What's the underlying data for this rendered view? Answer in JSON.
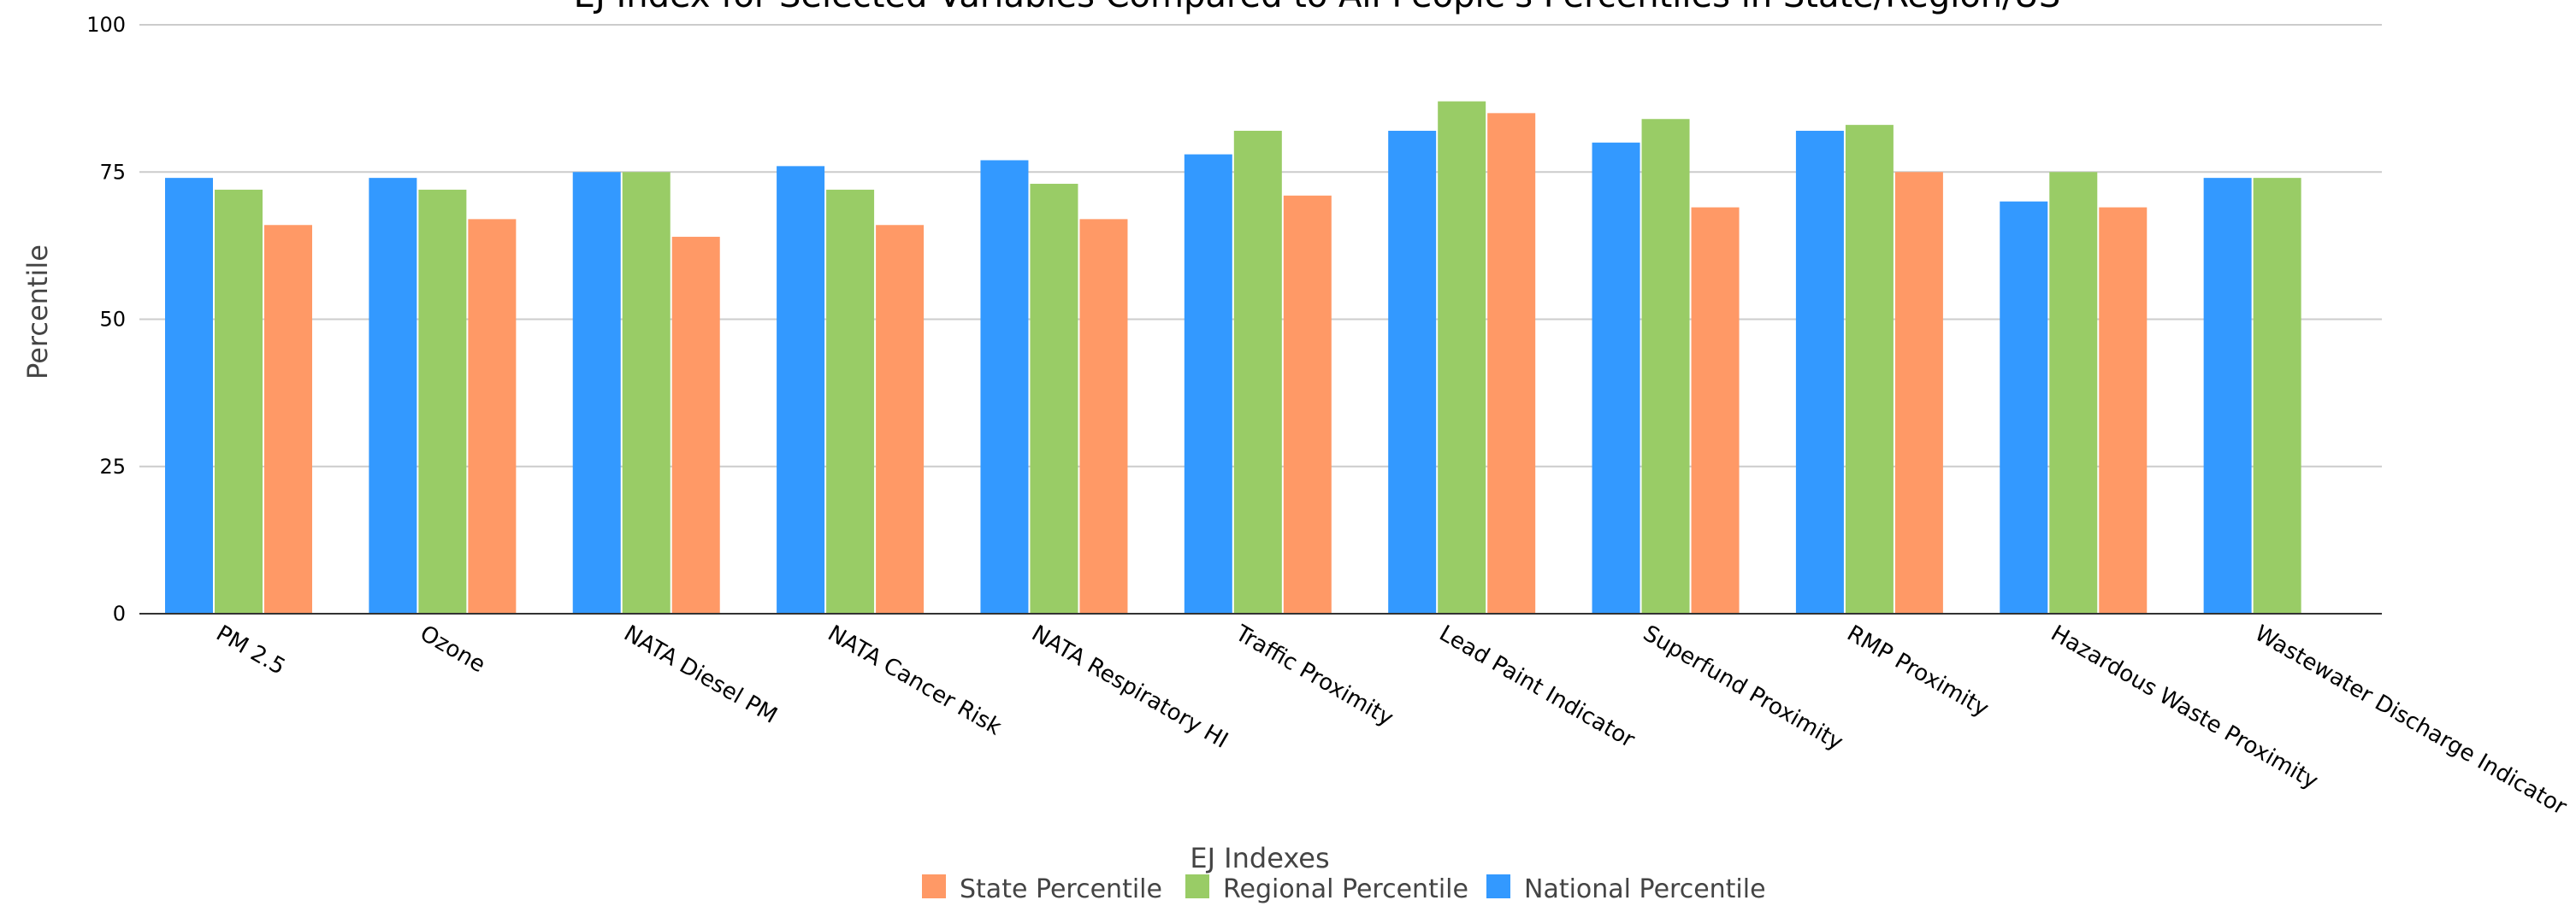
{
  "chart_data": {
    "type": "bar",
    "title": "EJ Index for Selected Variables Compared to All People's Percentiles in State/Region/US",
    "xlabel": "EJ Indexes",
    "ylabel": "Percentile",
    "ylim": [
      0,
      100
    ],
    "yticks": [
      0,
      25,
      50,
      75,
      100
    ],
    "grid": true,
    "legend_position": "bottom",
    "categories": [
      "PM 2.5",
      "Ozone",
      "NATA Diesel PM",
      "NATA Cancer Risk",
      "NATA Respiratory HI",
      "Traffic Proximity",
      "Lead Paint Indicator",
      "Superfund Proximity",
      "RMP Proximity",
      "Hazardous Waste Proximity",
      "Wastewater Discharge Indicator"
    ],
    "series": [
      {
        "name": "National Percentile",
        "color": "#3399ff",
        "values": [
          74,
          74,
          75,
          76,
          77,
          78,
          82,
          80,
          82,
          70,
          74
        ]
      },
      {
        "name": "Regional Percentile",
        "color": "#99cc66",
        "values": [
          72,
          72,
          75,
          72,
          73,
          82,
          87,
          84,
          83,
          75,
          74
        ]
      },
      {
        "name": "State Percentile",
        "color": "#ff9966",
        "values": [
          66,
          67,
          64,
          66,
          67,
          71,
          85,
          69,
          75,
          69,
          null
        ]
      }
    ],
    "legend_order": [
      "State Percentile",
      "Regional Percentile",
      "National Percentile"
    ]
  }
}
